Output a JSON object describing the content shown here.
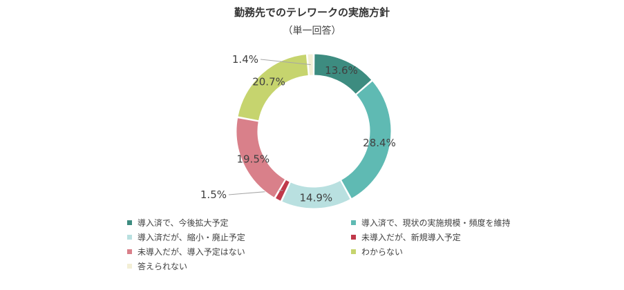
{
  "chart_data": {
    "type": "pie",
    "style": "donut",
    "title": "勤務先でのテレワークの実施方針",
    "subtitle": "（単一回答）",
    "value_labels": [
      "13.6%",
      "28.4%",
      "14.9%",
      "1.5%",
      "19.5%",
      "20.7%",
      "1.4%"
    ],
    "series": [
      {
        "name": "導入済で、今後拡大予定",
        "value": 13.6,
        "color": "#3d8c80"
      },
      {
        "name": "導入済で、現状の実施規模・頻度を維持",
        "value": 28.4,
        "color": "#5fbab3"
      },
      {
        "name": "導入済だが、縮小・廃止予定",
        "value": 14.9,
        "color": "#b9e0e0"
      },
      {
        "name": "未導入だが、新規導入予定",
        "value": 1.5,
        "color": "#c0394a"
      },
      {
        "name": "未導入だが、導入予定はない",
        "value": 19.5,
        "color": "#d9808a"
      },
      {
        "name": "わからない",
        "value": 20.7,
        "color": "#c6d46e"
      },
      {
        "name": "答えられない",
        "value": 1.4,
        "color": "#f3efd6"
      }
    ],
    "legend_position": "bottom"
  }
}
